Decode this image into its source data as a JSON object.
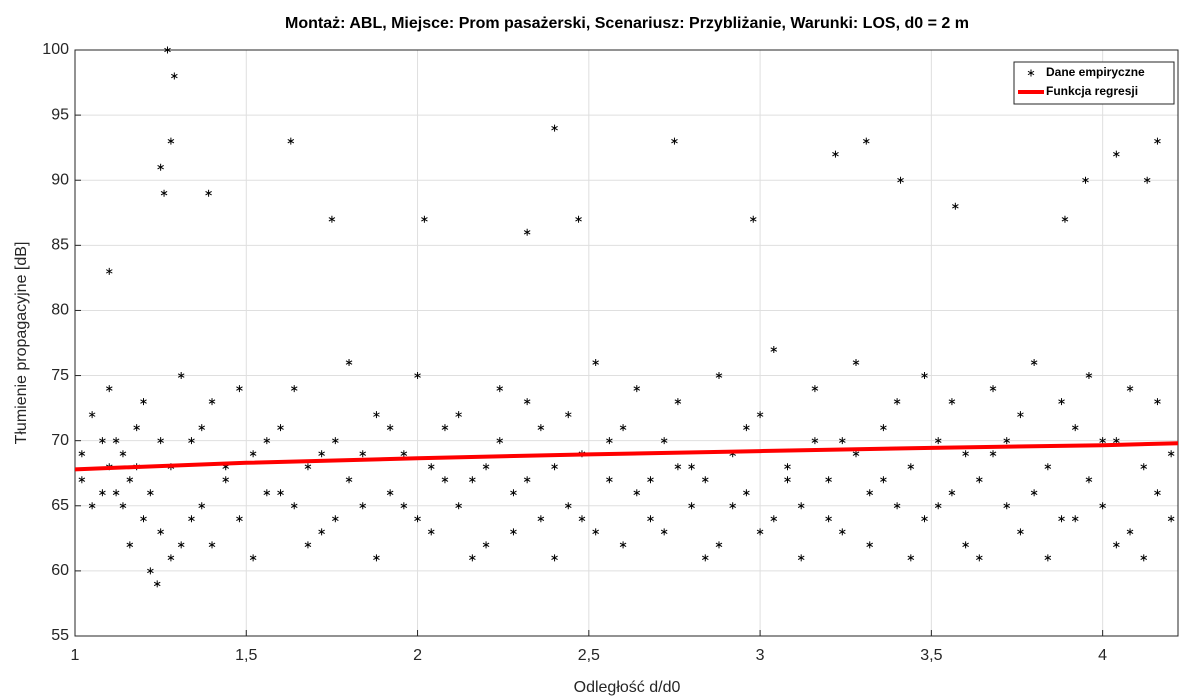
{
  "chart_data": {
    "type": "scatter",
    "title": "Montaż: ABL, Miejsce: Prom pasażerski, Scenariusz: Przybliżanie, Warunki: LOS, d0 = 2 m",
    "xlabel": "Odległość d/d0",
    "ylabel": "Tłumienie propagacyjne [dB]",
    "xlim": [
      1,
      4.22
    ],
    "ylim": [
      55,
      100
    ],
    "xticks": [
      1,
      {
        "value": 1.5,
        "label": "1,5"
      },
      2,
      {
        "value": 2.5,
        "label": "2,5"
      },
      3,
      {
        "value": 3.5,
        "label": "3,5"
      },
      4
    ],
    "yticks": [
      55,
      60,
      65,
      70,
      75,
      80,
      85,
      90,
      95,
      100
    ],
    "grid": true,
    "legend": "upper right",
    "series": [
      {
        "name": "Dane empiryczne",
        "type": "scatter",
        "color": "#000000",
        "x": [
          1.02,
          1.05,
          1.08,
          1.1,
          1.12,
          1.14,
          1.16,
          1.18,
          1.2,
          1.22,
          1.25,
          1.28,
          1.31,
          1.34,
          1.37,
          1.4,
          1.44,
          1.48,
          1.52,
          1.56,
          1.6,
          1.64,
          1.68,
          1.72,
          1.76,
          1.8,
          1.84,
          1.88,
          1.92,
          1.96,
          2.0,
          2.04,
          2.08,
          2.12,
          2.16,
          2.2,
          2.24,
          2.28,
          2.32,
          2.36,
          2.4,
          2.44,
          2.48,
          2.52,
          2.56,
          2.6,
          2.64,
          2.68,
          2.72,
          2.76,
          2.8,
          2.84,
          2.88,
          2.92,
          2.96,
          3.0,
          3.04,
          3.08,
          3.12,
          3.16,
          3.2,
          3.24,
          3.28,
          3.32,
          3.36,
          3.4,
          3.44,
          3.48,
          3.52,
          3.56,
          3.6,
          3.64,
          3.68,
          3.72,
          3.76,
          3.8,
          3.84,
          3.88,
          3.92,
          3.96,
          4.0,
          4.04,
          4.08,
          4.12,
          4.16,
          4.2,
          1.02,
          1.05,
          1.08,
          1.1,
          1.12,
          1.14,
          1.16,
          1.18,
          1.2,
          1.22,
          1.25,
          1.28,
          1.31,
          1.34,
          1.37,
          1.4,
          1.44,
          1.48,
          1.52,
          1.56,
          1.6,
          1.64,
          1.68,
          1.72,
          1.76,
          1.8,
          1.84,
          1.88,
          1.92,
          1.96,
          2.0,
          2.04,
          2.08,
          2.12,
          2.16,
          2.2,
          2.24,
          2.28,
          2.32,
          2.36,
          2.4,
          2.44,
          2.48,
          2.52,
          2.56,
          2.6,
          2.64,
          2.68,
          2.72,
          2.76,
          2.8,
          2.84,
          2.88,
          2.92,
          2.96,
          3.0,
          3.04,
          3.08,
          3.12,
          3.16,
          3.2,
          3.24,
          3.28,
          3.32,
          3.36,
          3.4,
          3.44,
          3.48,
          3.52,
          3.56,
          3.6,
          3.64,
          3.68,
          3.72,
          3.76,
          3.8,
          3.84,
          3.88,
          3.92,
          3.96,
          4.0,
          4.04,
          4.08,
          4.12,
          4.16,
          4.2,
          1.24,
          1.25,
          1.26,
          1.27,
          1.28,
          1.29,
          1.39,
          1.63,
          1.75,
          2.02,
          2.4,
          2.47,
          2.75,
          2.98,
          3.22,
          3.31,
          3.41,
          3.57,
          3.95,
          4.04,
          4.13,
          4.16,
          1.1,
          2.32,
          3.89
        ],
        "values": [
          69,
          72,
          66,
          68,
          70,
          65,
          67,
          71,
          64,
          66,
          63,
          68,
          62,
          70,
          65,
          73,
          67,
          64,
          69,
          66,
          71,
          65,
          68,
          63,
          70,
          67,
          65,
          72,
          66,
          69,
          64,
          68,
          71,
          65,
          67,
          62,
          70,
          66,
          73,
          64,
          68,
          65,
          69,
          63,
          67,
          71,
          66,
          64,
          70,
          68,
          65,
          67,
          62,
          69,
          66,
          72,
          64,
          68,
          65,
          70,
          67,
          63,
          69,
          66,
          71,
          65,
          68,
          64,
          70,
          66,
          62,
          67,
          69,
          65,
          72,
          66,
          68,
          64,
          71,
          67,
          65,
          70,
          63,
          68,
          66,
          69,
          67,
          65,
          70,
          74,
          66,
          69,
          62,
          68,
          73,
          60,
          70,
          61,
          75,
          64,
          71,
          62,
          68,
          74,
          61,
          70,
          66,
          74,
          62,
          69,
          64,
          76,
          69,
          61,
          71,
          65,
          75,
          63,
          67,
          72,
          61,
          68,
          74,
          63,
          67,
          71,
          61,
          72,
          64,
          76,
          70,
          62,
          74,
          67,
          63,
          73,
          68,
          61,
          75,
          65,
          71,
          63,
          77,
          67,
          61,
          74,
          64,
          70,
          76,
          62,
          67,
          73,
          61,
          75,
          65,
          73,
          69,
          61,
          74,
          70,
          63,
          76,
          61,
          73,
          64,
          75,
          70,
          62,
          74,
          61,
          73,
          64,
          59,
          91,
          89,
          100,
          93,
          98,
          89,
          93,
          87,
          87,
          94,
          87,
          93,
          87,
          92,
          93,
          90,
          88,
          90,
          92,
          90,
          93,
          83,
          86,
          87
        ]
      },
      {
        "name": "Funkcja regresji",
        "type": "line",
        "color": "#ff0000",
        "x": [
          1,
          1.5,
          2,
          2.5,
          3,
          3.5,
          4,
          4.22
        ],
        "values": [
          67.8,
          68.3,
          68.65,
          68.95,
          69.2,
          69.45,
          69.65,
          69.8
        ]
      }
    ]
  }
}
